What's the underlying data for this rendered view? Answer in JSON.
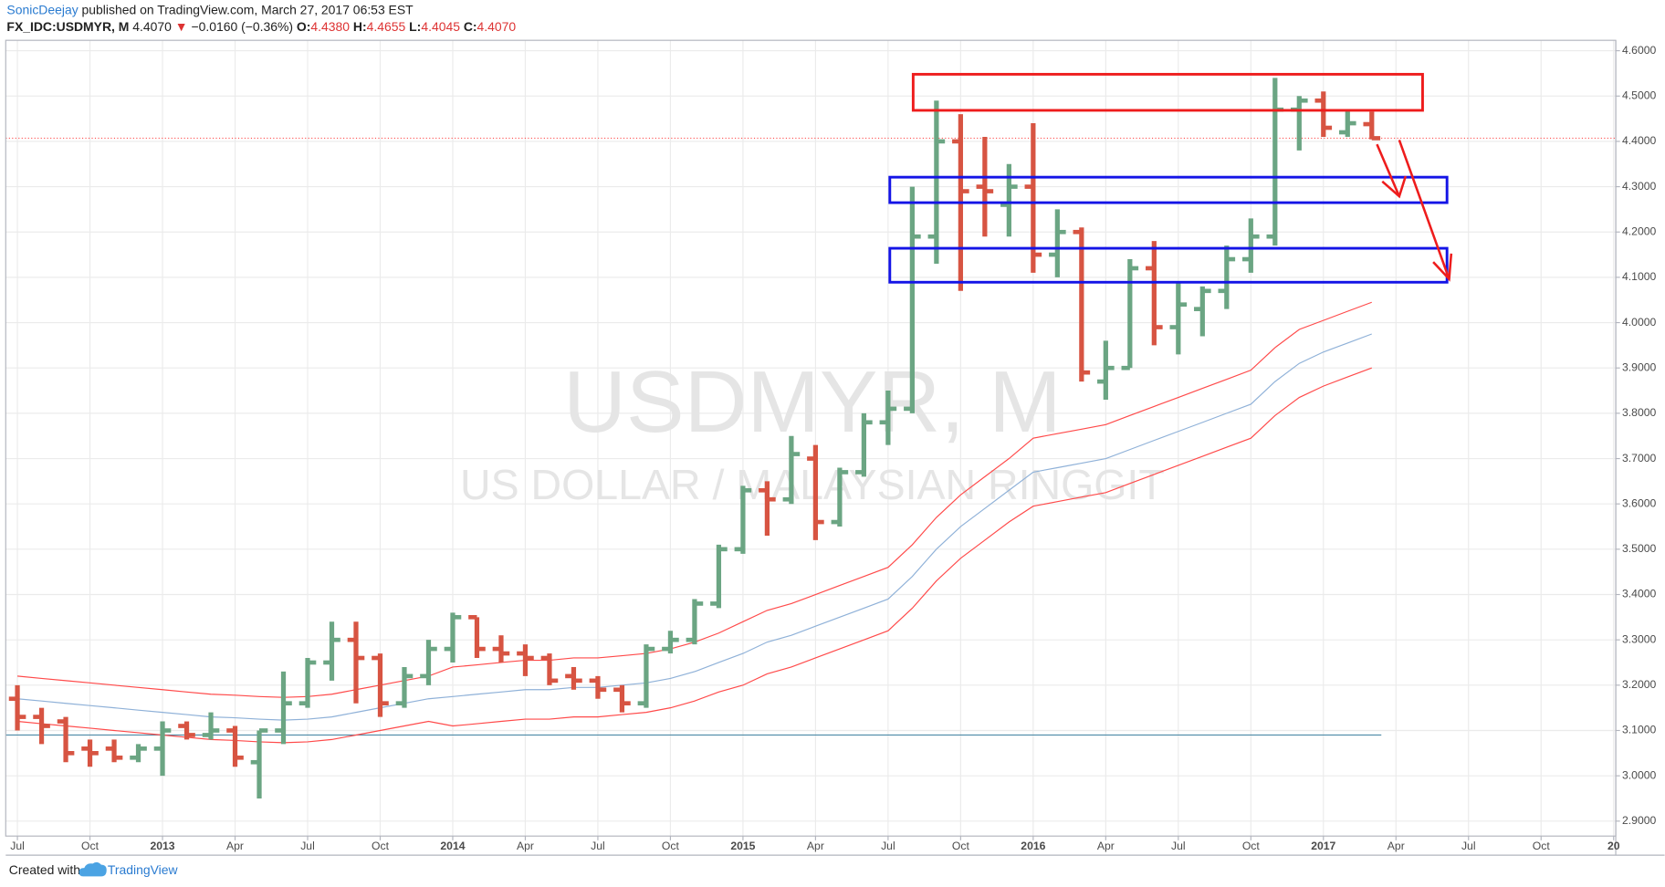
{
  "header": {
    "author": "SonicDeejay",
    "published": "published on TradingView.com, March 27, 2017 06:53 EST",
    "symbol": "FX_IDC:USDMYR, M",
    "last": "4.4070",
    "change": "−0.0160 (−0.36%)",
    "open_label": "O:",
    "open": "4.4380",
    "high_label": "H:",
    "high": "4.4655",
    "low_label": "L:",
    "low": "4.4045",
    "close_label": "C:",
    "close": "4.4070"
  },
  "footer": {
    "created": "Created with",
    "brand": "TradingView"
  },
  "chart_data": {
    "type": "ohlc",
    "watermark": "USDMYR, M",
    "subtitle": "US DOLLAR / MALAYSIAN RINGGIT",
    "x": [
      "2012-07",
      "2012-08",
      "2012-09",
      "2012-10",
      "2012-11",
      "2012-12",
      "2013-01",
      "2013-02",
      "2013-03",
      "2013-04",
      "2013-05",
      "2013-06",
      "2013-07",
      "2013-08",
      "2013-09",
      "2013-10",
      "2013-11",
      "2013-12",
      "2014-01",
      "2014-02",
      "2014-03",
      "2014-04",
      "2014-05",
      "2014-06",
      "2014-07",
      "2014-08",
      "2014-09",
      "2014-10",
      "2014-11",
      "2014-12",
      "2015-01",
      "2015-02",
      "2015-03",
      "2015-04",
      "2015-05",
      "2015-06",
      "2015-07",
      "2015-08",
      "2015-09",
      "2015-10",
      "2015-11",
      "2015-12",
      "2016-01",
      "2016-02",
      "2016-03",
      "2016-04",
      "2016-05",
      "2016-06",
      "2016-07",
      "2016-08",
      "2016-09",
      "2016-10",
      "2016-11",
      "2016-12",
      "2017-01",
      "2017-02",
      "2017-03"
    ],
    "open": [
      3.17,
      3.13,
      3.12,
      3.06,
      3.06,
      3.04,
      3.06,
      3.11,
      3.09,
      3.1,
      3.03,
      3.1,
      3.16,
      3.25,
      3.3,
      3.26,
      3.16,
      3.22,
      3.28,
      3.35,
      3.28,
      3.27,
      3.26,
      3.22,
      3.21,
      3.19,
      3.16,
      3.28,
      3.3,
      3.38,
      3.5,
      3.63,
      3.61,
      3.7,
      3.56,
      3.67,
      3.78,
      3.81,
      4.19,
      4.4,
      4.3,
      4.26,
      4.3,
      4.15,
      4.2,
      3.87,
      3.9,
      4.12,
      3.99,
      4.03,
      4.07,
      4.14,
      4.19,
      4.47,
      4.49,
      4.42,
      4.438
    ],
    "high": [
      3.2,
      3.15,
      3.13,
      3.08,
      3.08,
      3.07,
      3.12,
      3.12,
      3.14,
      3.11,
      3.1,
      3.23,
      3.26,
      3.34,
      3.34,
      3.27,
      3.24,
      3.3,
      3.36,
      3.35,
      3.31,
      3.29,
      3.27,
      3.24,
      3.22,
      3.2,
      3.29,
      3.32,
      3.39,
      3.51,
      3.64,
      3.65,
      3.75,
      3.73,
      3.68,
      3.8,
      3.85,
      4.3,
      4.49,
      4.46,
      4.41,
      4.35,
      4.44,
      4.25,
      4.21,
      3.96,
      4.14,
      4.18,
      4.09,
      4.08,
      4.17,
      4.23,
      4.54,
      4.5,
      4.51,
      4.47,
      4.4655
    ],
    "low": [
      3.1,
      3.07,
      3.03,
      3.02,
      3.03,
      3.03,
      3.0,
      3.08,
      3.08,
      3.02,
      2.95,
      3.07,
      3.15,
      3.21,
      3.16,
      3.13,
      3.15,
      3.2,
      3.25,
      3.26,
      3.25,
      3.22,
      3.2,
      3.19,
      3.17,
      3.14,
      3.15,
      3.27,
      3.29,
      3.37,
      3.49,
      3.53,
      3.6,
      3.52,
      3.55,
      3.66,
      3.73,
      3.8,
      4.13,
      4.07,
      4.19,
      4.19,
      4.11,
      4.1,
      3.87,
      3.83,
      3.9,
      3.95,
      3.93,
      3.97,
      4.03,
      4.11,
      4.17,
      4.38,
      4.41,
      4.41,
      4.4045
    ],
    "close": [
      3.13,
      3.11,
      3.05,
      3.05,
      3.04,
      3.06,
      3.1,
      3.09,
      3.1,
      3.04,
      3.1,
      3.16,
      3.25,
      3.3,
      3.26,
      3.16,
      3.22,
      3.28,
      3.35,
      3.28,
      3.27,
      3.26,
      3.21,
      3.21,
      3.19,
      3.16,
      3.28,
      3.3,
      3.38,
      3.5,
      3.63,
      3.61,
      3.71,
      3.56,
      3.67,
      3.78,
      3.81,
      4.19,
      4.4,
      4.29,
      4.29,
      4.3,
      4.15,
      4.2,
      3.89,
      3.9,
      4.12,
      3.99,
      4.04,
      4.07,
      4.14,
      4.19,
      4.47,
      4.49,
      4.43,
      4.44,
      4.407
    ],
    "up_color": "#6ba583",
    "down_color": "#d75442",
    "lines": [
      {
        "color": "#ff4a4a",
        "values": [
          3.22,
          3.215,
          3.21,
          3.205,
          3.2,
          3.195,
          3.19,
          3.185,
          3.18,
          3.178,
          3.175,
          3.173,
          3.175,
          3.18,
          3.19,
          3.2,
          3.21,
          3.22,
          3.24,
          3.245,
          3.25,
          3.255,
          3.255,
          3.26,
          3.26,
          3.265,
          3.27,
          3.28,
          3.295,
          3.315,
          3.34,
          3.365,
          3.38,
          3.4,
          3.42,
          3.44,
          3.46,
          3.51,
          3.57,
          3.62,
          3.66,
          3.7,
          3.745,
          3.755,
          3.765,
          3.775,
          3.795,
          3.815,
          3.835,
          3.855,
          3.875,
          3.895,
          3.945,
          3.985,
          4.005,
          4.025,
          4.045
        ]
      },
      {
        "color": "#8fb1d8",
        "values": [
          3.17,
          3.165,
          3.16,
          3.155,
          3.15,
          3.145,
          3.14,
          3.135,
          3.13,
          3.128,
          3.125,
          3.123,
          3.125,
          3.13,
          3.14,
          3.15,
          3.16,
          3.17,
          3.175,
          3.18,
          3.185,
          3.19,
          3.19,
          3.195,
          3.195,
          3.2,
          3.205,
          3.215,
          3.23,
          3.25,
          3.27,
          3.295,
          3.31,
          3.33,
          3.35,
          3.37,
          3.39,
          3.44,
          3.5,
          3.55,
          3.59,
          3.63,
          3.67,
          3.68,
          3.69,
          3.7,
          3.72,
          3.74,
          3.76,
          3.78,
          3.8,
          3.82,
          3.87,
          3.91,
          3.935,
          3.955,
          3.975
        ]
      },
      {
        "color": "#ff4a4a",
        "values": [
          3.12,
          3.115,
          3.11,
          3.105,
          3.1,
          3.095,
          3.09,
          3.085,
          3.08,
          3.078,
          3.075,
          3.073,
          3.075,
          3.08,
          3.09,
          3.1,
          3.11,
          3.12,
          3.11,
          3.115,
          3.12,
          3.125,
          3.125,
          3.13,
          3.13,
          3.135,
          3.14,
          3.15,
          3.165,
          3.185,
          3.2,
          3.225,
          3.24,
          3.26,
          3.28,
          3.3,
          3.32,
          3.37,
          3.43,
          3.48,
          3.52,
          3.56,
          3.595,
          3.605,
          3.615,
          3.625,
          3.645,
          3.665,
          3.685,
          3.705,
          3.725,
          3.745,
          3.795,
          3.835,
          3.86,
          3.88,
          3.9
        ]
      }
    ],
    "hline": {
      "value": 3.09,
      "color": "#4d8aa6"
    },
    "last_line_color": "#ff5252",
    "xlim": [
      "2012-07",
      "2018-01"
    ],
    "xticks": [
      {
        "value": "2012-07",
        "label": "Jul"
      },
      {
        "value": "2012-10",
        "label": "Oct"
      },
      {
        "value": "2013-01",
        "label": "2013"
      },
      {
        "value": "2013-04",
        "label": "Apr"
      },
      {
        "value": "2013-07",
        "label": "Jul"
      },
      {
        "value": "2013-10",
        "label": "Oct"
      },
      {
        "value": "2014-01",
        "label": "2014"
      },
      {
        "value": "2014-04",
        "label": "Apr"
      },
      {
        "value": "2014-07",
        "label": "Jul"
      },
      {
        "value": "2014-10",
        "label": "Oct"
      },
      {
        "value": "2015-01",
        "label": "2015"
      },
      {
        "value": "2015-04",
        "label": "Apr"
      },
      {
        "value": "2015-07",
        "label": "Jul"
      },
      {
        "value": "2015-10",
        "label": "Oct"
      },
      {
        "value": "2016-01",
        "label": "2016"
      },
      {
        "value": "2016-04",
        "label": "Apr"
      },
      {
        "value": "2016-07",
        "label": "Jul"
      },
      {
        "value": "2016-10",
        "label": "Oct"
      },
      {
        "value": "2017-01",
        "label": "2017"
      },
      {
        "value": "2017-04",
        "label": "Apr"
      },
      {
        "value": "2017-07",
        "label": "Jul"
      },
      {
        "value": "2017-10",
        "label": "Oct"
      },
      {
        "value": "2018-01",
        "label": "20"
      }
    ],
    "ylim": [
      2.867,
      4.623
    ],
    "yticks": [
      {
        "value": 2.9,
        "label": "2.9000"
      },
      {
        "value": 3.0,
        "label": "3.0000"
      },
      {
        "value": 3.1,
        "label": "3.1000"
      },
      {
        "value": 3.2,
        "label": "3.2000"
      },
      {
        "value": 3.3,
        "label": "3.3000"
      },
      {
        "value": 3.4,
        "label": "3.4000"
      },
      {
        "value": 3.5,
        "label": "3.5000"
      },
      {
        "value": 3.6,
        "label": "3.6000"
      },
      {
        "value": 3.7,
        "label": "3.7000"
      },
      {
        "value": 3.8,
        "label": "3.8000"
      },
      {
        "value": 3.9,
        "label": "3.9000"
      },
      {
        "value": 4.0,
        "label": "4.0000"
      },
      {
        "value": 4.1,
        "label": "4.1000"
      },
      {
        "value": 4.2,
        "label": "4.2000"
      },
      {
        "value": 4.3,
        "label": "4.3000"
      },
      {
        "value": 4.4,
        "label": "4.4000"
      },
      {
        "value": 4.5,
        "label": "4.5000"
      },
      {
        "value": 4.6,
        "label": "4.6000"
      }
    ],
    "grid": true
  }
}
